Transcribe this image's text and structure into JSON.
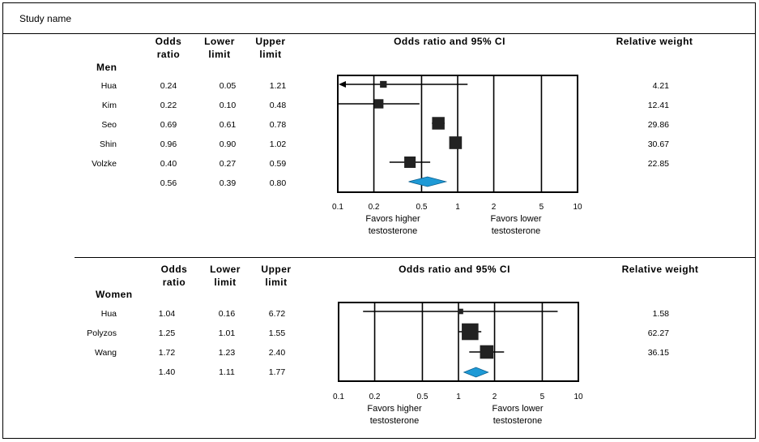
{
  "header": {
    "study_name": "Study name"
  },
  "colors": {
    "square": "#222222",
    "diamond": "#1e9ad6",
    "line": "#000000"
  },
  "chart_data": [
    {
      "type": "forest",
      "group": "Men",
      "col_headers": {
        "odds": "Odds\nratio",
        "lower": "Lower\nlimit",
        "upper": "Upper\nlimit",
        "plot": "Odds ratio and 95% CI",
        "weight": "Relative weight"
      },
      "scale": "log",
      "xlim": [
        0.1,
        10
      ],
      "ticks": [
        0.1,
        0.2,
        0.5,
        1,
        2,
        5,
        10
      ],
      "tick_labels": [
        "0.1",
        "0.2",
        "0.5",
        "1",
        "2",
        "5",
        "10"
      ],
      "favors_left": "Favors higher\ntestosterone",
      "favors_right": "Favors lower\ntestosterone",
      "studies": [
        {
          "name": "Hua",
          "or": "0.24",
          "lower": "0.05",
          "upper": "1.21",
          "weight": "4.21",
          "arrow_left": true
        },
        {
          "name": "Kim",
          "or": "0.22",
          "lower": "0.10",
          "upper": "0.48",
          "weight": "12.41"
        },
        {
          "name": "Seo",
          "or": "0.69",
          "lower": "0.61",
          "upper": "0.78",
          "weight": "29.86"
        },
        {
          "name": "Shin",
          "or": "0.96",
          "lower": "0.90",
          "upper": "1.02",
          "weight": "30.67"
        },
        {
          "name": "Volzke",
          "or": "0.40",
          "lower": "0.27",
          "upper": "0.59",
          "weight": "22.85"
        }
      ],
      "summary": {
        "or": "0.56",
        "lower": "0.39",
        "upper": "0.80"
      }
    },
    {
      "type": "forest",
      "group": "Women",
      "col_headers": {
        "odds": "Odds\nratio",
        "lower": "Lower\nlimit",
        "upper": "Upper\nlimit",
        "plot": "Odds ratio and 95% CI",
        "weight": "Relative weight"
      },
      "scale": "log",
      "xlim": [
        0.1,
        10
      ],
      "ticks": [
        0.1,
        0.2,
        0.5,
        1,
        2,
        5,
        10
      ],
      "tick_labels": [
        "0.1",
        "0.2",
        "0.5",
        "1",
        "2",
        "5",
        "10"
      ],
      "favors_left": "Favors higher\ntestosterone",
      "favors_right": "Favors lower\ntestosterone",
      "studies": [
        {
          "name": "Hua",
          "or": "1.04",
          "lower": "0.16",
          "upper": "6.72",
          "weight": "1.58"
        },
        {
          "name": "Polyzos",
          "or": "1.25",
          "lower": "1.01",
          "upper": "1.55",
          "weight": "62.27"
        },
        {
          "name": "Wang",
          "or": "1.72",
          "lower": "1.23",
          "upper": "2.40",
          "weight": "36.15"
        }
      ],
      "summary": {
        "or": "1.40",
        "lower": "1.11",
        "upper": "1.77"
      }
    }
  ]
}
